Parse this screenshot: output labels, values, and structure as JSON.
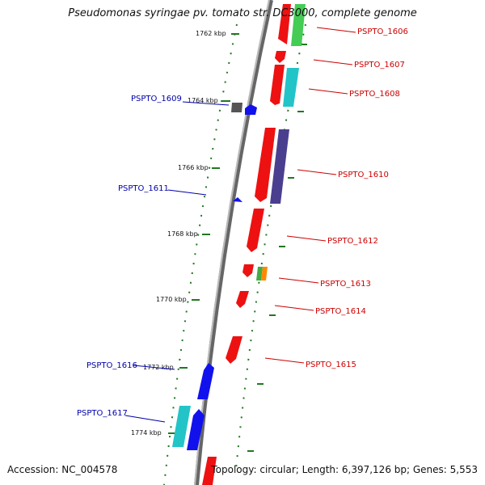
{
  "title": "Pseudomonas syringae pv. tomato str. DC3000, complete genome",
  "footer": {
    "accession": "Accession: NC_004578",
    "summary": "Topology: circular; Length: 6,397,126 bp; Genes: 5,553"
  },
  "kbp_ticks": [
    "1762 kbp",
    "1764 kbp",
    "1766 kbp",
    "1768 kbp",
    "1770 kbp",
    "1772 kbp",
    "1774 kbp"
  ],
  "genes_forward": [
    {
      "id": "PSPTO_1606",
      "color": "#ee1111",
      "color2": "#44cc55"
    },
    {
      "id": "PSPTO_1607",
      "color": "#ee1111"
    },
    {
      "id": "PSPTO_1608",
      "color": "#ee1111",
      "color2": "#22c4c8"
    },
    {
      "id": "PSPTO_1610",
      "color": "#ee1111",
      "color2": "#4a3f8f"
    },
    {
      "id": "PSPTO_1612",
      "color": "#ee1111"
    },
    {
      "id": "PSPTO_1613",
      "color": "#ee1111",
      "color2": "#44aa44",
      "color3": "#ff8800"
    },
    {
      "id": "PSPTO_1614",
      "color": "#ee1111"
    },
    {
      "id": "PSPTO_1615",
      "color": "#ee1111"
    }
  ],
  "genes_reverse": [
    {
      "id": "PSPTO_1609",
      "color": "#1111ee",
      "color2": "#555555"
    },
    {
      "id": "PSPTO_1611",
      "color": "#1111ee"
    },
    {
      "id": "PSPTO_1616",
      "color": "#1111ee"
    },
    {
      "id": "PSPTO_1617",
      "color": "#1111ee",
      "color2": "#22c4c8"
    }
  ],
  "colors": {
    "forward_label": "#cc0000",
    "reverse_label": "#0000aa",
    "backbone": "#888888",
    "tick_marks": "#227722"
  }
}
